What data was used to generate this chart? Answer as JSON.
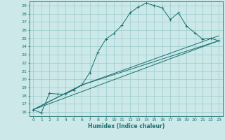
{
  "xlabel": "Humidex (Indice chaleur)",
  "bg_color": "#cce8e8",
  "line_color": "#1a7070",
  "grid_color": "#99cccc",
  "xlim": [
    -0.5,
    23.5
  ],
  "ylim": [
    15.5,
    29.5
  ],
  "yticks": [
    16,
    17,
    18,
    19,
    20,
    21,
    22,
    23,
    24,
    25,
    26,
    27,
    28,
    29
  ],
  "xticks": [
    0,
    1,
    2,
    3,
    4,
    5,
    6,
    7,
    8,
    9,
    10,
    11,
    12,
    13,
    14,
    15,
    16,
    17,
    18,
    19,
    20,
    21,
    22,
    23
  ],
  "line1_x": [
    0,
    1,
    2,
    3,
    4,
    5,
    6,
    7,
    8,
    9,
    10,
    11,
    12,
    13,
    14,
    15,
    16,
    17,
    18,
    19,
    20,
    21,
    22,
    23
  ],
  "line1_y": [
    16.3,
    15.9,
    18.3,
    18.2,
    18.2,
    18.7,
    19.3,
    20.8,
    23.3,
    24.9,
    25.6,
    26.6,
    28.1,
    28.8,
    29.3,
    29.0,
    28.7,
    27.3,
    28.1,
    26.5,
    25.7,
    24.9,
    25.0,
    24.7
  ],
  "line2_x": [
    0,
    23
  ],
  "line2_y": [
    16.3,
    24.7
  ],
  "line3_x": [
    0,
    6,
    23
  ],
  "line3_y": [
    16.3,
    19.3,
    24.7
  ],
  "line4_x": [
    0,
    6,
    23
  ],
  "line4_y": [
    16.3,
    19.3,
    25.3
  ]
}
